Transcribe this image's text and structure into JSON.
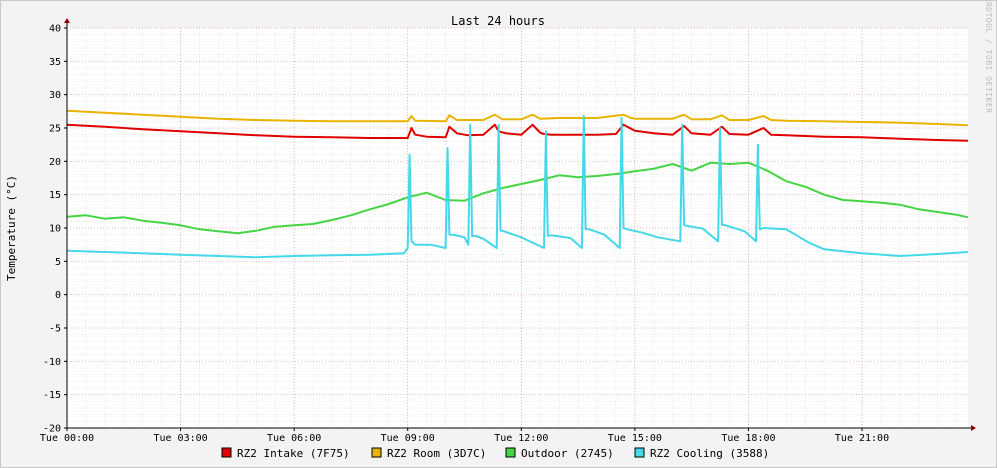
{
  "chart_data": {
    "type": "line",
    "title": "Last 24 hours",
    "ylabel": "Temperature (°C)",
    "xlabel": "",
    "ylim": [
      -20,
      40
    ],
    "xlim": [
      0,
      23.8
    ],
    "y_ticks": [
      40,
      35,
      30,
      25,
      20,
      15,
      10,
      5,
      0,
      -5,
      -10,
      -15,
      -20
    ],
    "x_ticks": [
      {
        "t": 0,
        "label": "Tue 00:00"
      },
      {
        "t": 3,
        "label": "Tue 03:00"
      },
      {
        "t": 6,
        "label": "Tue 06:00"
      },
      {
        "t": 9,
        "label": "Tue 09:00"
      },
      {
        "t": 12,
        "label": "Tue 12:00"
      },
      {
        "t": 15,
        "label": "Tue 15:00"
      },
      {
        "t": 18,
        "label": "Tue 18:00"
      },
      {
        "t": 21,
        "label": "Tue 21:00"
      }
    ],
    "grid": true,
    "watermark": "RRDTOOL / TOBI OETIKER",
    "series": [
      {
        "name": "RZ2 Intake (7F75)",
        "color": "#e00000",
        "x": [
          0,
          1,
          2,
          3,
          4,
          5,
          6,
          7,
          8,
          9,
          9.1,
          9.2,
          9.5,
          10,
          10.1,
          10.3,
          10.6,
          11,
          11.3,
          11.4,
          11.6,
          12,
          12.3,
          12.5,
          12.6,
          12.8,
          13,
          13.5,
          14,
          14.5,
          14.7,
          15,
          15.5,
          16,
          16.3,
          16.5,
          17,
          17.3,
          17.5,
          18,
          18.4,
          18.6,
          19,
          20,
          21,
          22,
          23,
          23.8
        ],
        "values": [
          25.5,
          25.2,
          24.8,
          24.5,
          24.2,
          23.9,
          23.7,
          23.6,
          23.5,
          23.5,
          25.0,
          24.0,
          23.7,
          23.6,
          25.2,
          24.2,
          23.9,
          24.0,
          25.5,
          24.5,
          24.2,
          24.0,
          25.5,
          24.3,
          24.1,
          24.0,
          24.0,
          24.0,
          24.0,
          24.1,
          25.5,
          24.6,
          24.2,
          24.0,
          25.3,
          24.2,
          24.0,
          25.2,
          24.1,
          24.0,
          25.0,
          24.0,
          23.9,
          23.7,
          23.6,
          23.4,
          23.2,
          23.1
        ]
      },
      {
        "name": "RZ2 Room (3D7C)",
        "color": "#e8b400",
        "x": [
          0,
          1,
          2,
          3,
          4,
          5,
          6,
          7,
          8,
          9,
          9.1,
          9.2,
          10,
          10.1,
          10.3,
          11,
          11.3,
          11.5,
          12,
          12.3,
          12.5,
          13,
          14,
          14.7,
          14.9,
          15,
          16,
          16.3,
          16.5,
          17,
          17.3,
          17.5,
          18,
          18.4,
          18.6,
          19,
          20,
          21,
          22,
          23,
          23.8
        ],
        "values": [
          27.6,
          27.3,
          27.0,
          26.7,
          26.4,
          26.2,
          26.1,
          26.0,
          26.0,
          26.0,
          26.8,
          26.1,
          26.0,
          26.9,
          26.2,
          26.2,
          27.0,
          26.3,
          26.3,
          27.0,
          26.4,
          26.5,
          26.5,
          27.0,
          26.5,
          26.4,
          26.4,
          27.0,
          26.3,
          26.3,
          26.9,
          26.2,
          26.2,
          26.8,
          26.2,
          26.1,
          26.0,
          25.9,
          25.8,
          25.6,
          25.4
        ]
      },
      {
        "name": "Outdoor (2745)",
        "color": "#44d444",
        "x": [
          0,
          0.5,
          1,
          1.5,
          2,
          2.5,
          3,
          3.5,
          4,
          4.5,
          5,
          5.5,
          6,
          6.5,
          7,
          7.5,
          8,
          8.5,
          9,
          9.5,
          10,
          10.5,
          11,
          11.5,
          12,
          12.5,
          13,
          13.5,
          14,
          14.5,
          15,
          15.5,
          16,
          16.5,
          17,
          17.5,
          18,
          18.5,
          19,
          19.5,
          20,
          20.5,
          21,
          21.5,
          22,
          22.5,
          23,
          23.5,
          23.8
        ],
        "values": [
          11.7,
          11.9,
          11.4,
          11.6,
          11.1,
          10.8,
          10.4,
          9.8,
          9.5,
          9.2,
          9.6,
          10.2,
          10.4,
          10.6,
          11.2,
          11.9,
          12.8,
          13.6,
          14.6,
          15.3,
          14.2,
          14.1,
          15.2,
          16.0,
          16.6,
          17.2,
          17.9,
          17.6,
          17.8,
          18.1,
          18.5,
          18.9,
          19.6,
          18.6,
          19.8,
          19.6,
          19.8,
          18.6,
          17.0,
          16.2,
          15.0,
          14.2,
          14.0,
          13.8,
          13.5,
          12.8,
          12.4,
          12.0,
          11.6
        ]
      },
      {
        "name": "RZ2 Cooling (3588)",
        "color": "#44d8e8",
        "x": [
          0,
          1,
          2,
          3,
          4,
          5,
          6,
          7,
          8,
          8.9,
          9.0,
          9.05,
          9.1,
          9.2,
          9.6,
          10,
          10.05,
          10.1,
          10.2,
          10.5,
          10.6,
          10.65,
          10.7,
          10.8,
          11,
          11.35,
          11.4,
          11.45,
          11.5,
          12,
          12.6,
          12.65,
          12.7,
          12.8,
          13.3,
          13.6,
          13.65,
          13.7,
          13.8,
          14.2,
          14.6,
          14.65,
          14.7,
          14.8,
          15.2,
          15.6,
          16.2,
          16.25,
          16.3,
          16.4,
          16.8,
          17.2,
          17.25,
          17.3,
          17.4,
          17.9,
          18.2,
          18.25,
          18.3,
          18.4,
          19,
          19.6,
          20,
          21,
          22,
          23,
          23.8
        ],
        "values": [
          6.6,
          6.4,
          6.2,
          6.0,
          5.8,
          5.6,
          5.8,
          5.9,
          6.0,
          6.2,
          7.0,
          21.0,
          8.0,
          7.5,
          7.5,
          7.0,
          22.0,
          9.0,
          9.0,
          8.6,
          7.5,
          25.5,
          8.8,
          8.8,
          8.4,
          7.0,
          25.5,
          9.6,
          9.6,
          8.6,
          7.0,
          24.5,
          8.8,
          8.9,
          8.5,
          7.0,
          26.8,
          9.8,
          9.8,
          9.0,
          7.0,
          26.5,
          10.0,
          9.8,
          9.3,
          8.6,
          8.0,
          25.5,
          10.4,
          10.3,
          9.9,
          8.0,
          25.0,
          10.5,
          10.4,
          9.5,
          8.0,
          22.5,
          9.8,
          10.0,
          9.8,
          7.8,
          6.8,
          6.2,
          5.8,
          6.1,
          6.4
        ]
      }
    ]
  }
}
